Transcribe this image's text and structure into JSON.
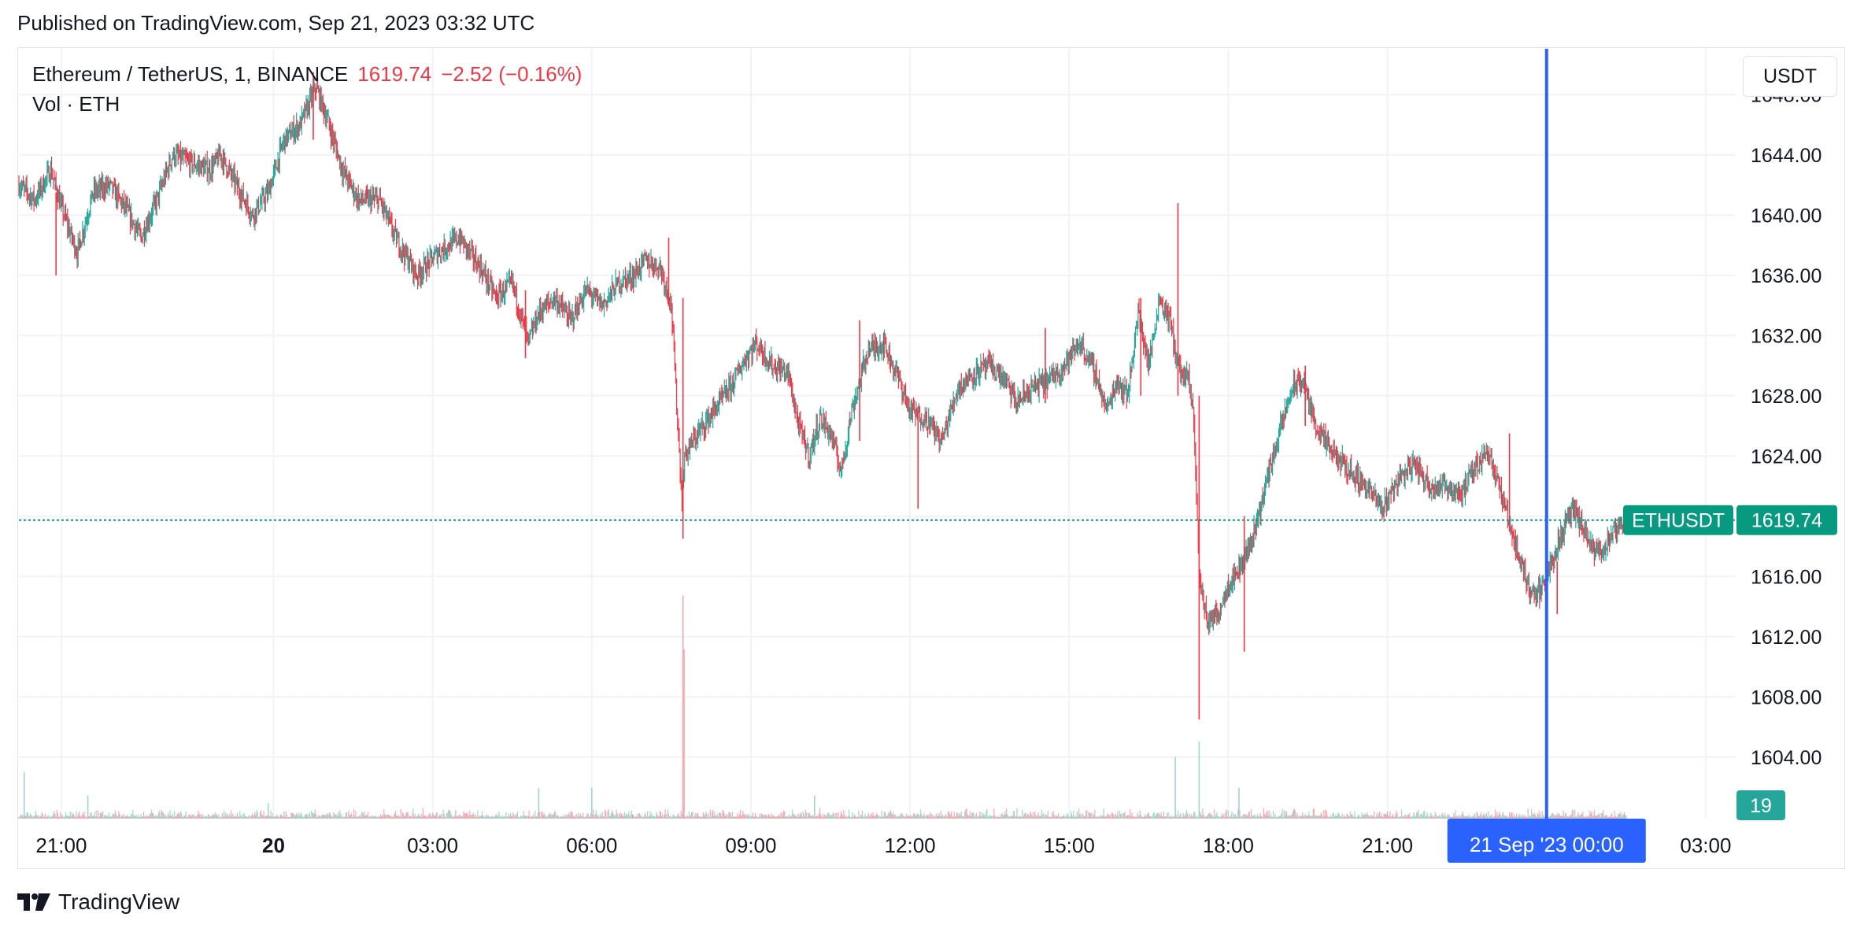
{
  "header": {
    "published": "Published on TradingView.com, Sep 21, 2023 03:32 UTC"
  },
  "legend": {
    "symbol": "Ethereum / TetherUS, 1, BINANCE",
    "last_price": "1619.74",
    "change": "−2.52 (−0.16%)",
    "volume_label": "Vol · ETH"
  },
  "scale": {
    "currency": "USDT"
  },
  "badges": {
    "symbol_tag": "ETHUSDT",
    "price_tag": "1619.74",
    "volume_tag": "19",
    "crosshair_time": "21 Sep '23   00:00"
  },
  "footer": {
    "brand": "TradingView"
  },
  "colors": {
    "up": "#26a69a",
    "down": "#f23645",
    "crosshair": "#2962ff",
    "grid": "#f0f3fa",
    "price_line": "#089981"
  },
  "chart_data": {
    "type": "candlestick",
    "symbol": "ETHUSDT",
    "interval": "1",
    "exchange": "BINANCE",
    "x_ticks": [
      {
        "label": "21:00",
        "time": 20.0
      },
      {
        "label": "20",
        "time": 24.0,
        "bold": true
      },
      {
        "label": "03:00",
        "time": 27.0
      },
      {
        "label": "06:00",
        "time": 30.0
      },
      {
        "label": "09:00",
        "time": 33.0
      },
      {
        "label": "12:00",
        "time": 36.0
      },
      {
        "label": "15:00",
        "time": 39.0
      },
      {
        "label": "18:00",
        "time": 42.0
      },
      {
        "label": "21:00",
        "time": 45.0
      },
      {
        "label": "00:00",
        "time": 48.0
      },
      {
        "label": "03:00",
        "time": 51.0
      }
    ],
    "x_range_hours": [
      19.2,
      51.55
    ],
    "y_ticks": [
      "1648.00",
      "1644.00",
      "1640.00",
      "1636.00",
      "1632.00",
      "1628.00",
      "1624.00",
      "1620.00",
      "1616.00",
      "1612.00",
      "1608.00",
      "1604.00"
    ],
    "ylim": [
      1602.0,
      1650.0
    ],
    "last_price": 1619.74,
    "crosshair_time": 48.0,
    "price_path": [
      [
        19.2,
        1642.0
      ],
      [
        19.5,
        1641.0
      ],
      [
        19.8,
        1643.0
      ],
      [
        20.0,
        1640.5
      ],
      [
        20.3,
        1637.5
      ],
      [
        20.6,
        1641.5
      ],
      [
        20.9,
        1642.0
      ],
      [
        21.2,
        1640.5
      ],
      [
        21.5,
        1638.5
      ],
      [
        21.8,
        1641.0
      ],
      [
        22.1,
        1644.0
      ],
      [
        22.4,
        1643.5
      ],
      [
        22.8,
        1643.0
      ],
      [
        23.0,
        1644.0
      ],
      [
        23.3,
        1642.0
      ],
      [
        23.6,
        1640.0
      ],
      [
        23.9,
        1641.5
      ],
      [
        24.2,
        1645.0
      ],
      [
        24.5,
        1646.0
      ],
      [
        24.8,
        1648.5
      ],
      [
        25.0,
        1646.5
      ],
      [
        25.3,
        1643.0
      ],
      [
        25.6,
        1641.0
      ],
      [
        26.0,
        1641.0
      ],
      [
        26.3,
        1638.5
      ],
      [
        26.7,
        1636.0
      ],
      [
        27.1,
        1637.5
      ],
      [
        27.5,
        1638.5
      ],
      [
        27.9,
        1636.5
      ],
      [
        28.2,
        1634.5
      ],
      [
        28.5,
        1635.5
      ],
      [
        28.8,
        1631.5
      ],
      [
        29.0,
        1633.5
      ],
      [
        29.3,
        1634.5
      ],
      [
        29.6,
        1633.0
      ],
      [
        29.9,
        1635.0
      ],
      [
        30.2,
        1634.0
      ],
      [
        30.5,
        1635.5
      ],
      [
        30.8,
        1636.0
      ],
      [
        31.0,
        1637.0
      ],
      [
        31.3,
        1636.5
      ],
      [
        31.5,
        1634.0
      ],
      [
        31.7,
        1621.0
      ],
      [
        31.75,
        1624.0
      ],
      [
        32.0,
        1625.5
      ],
      [
        32.3,
        1627.0
      ],
      [
        32.6,
        1628.5
      ],
      [
        32.9,
        1630.5
      ],
      [
        33.1,
        1631.5
      ],
      [
        33.4,
        1630.0
      ],
      [
        33.7,
        1629.5
      ],
      [
        33.9,
        1626.0
      ],
      [
        34.1,
        1624.0
      ],
      [
        34.3,
        1626.5
      ],
      [
        34.5,
        1625.5
      ],
      [
        34.7,
        1623.0
      ],
      [
        34.9,
        1627.0
      ],
      [
        35.2,
        1631.0
      ],
      [
        35.5,
        1631.5
      ],
      [
        35.8,
        1629.0
      ],
      [
        36.0,
        1627.0
      ],
      [
        36.3,
        1626.5
      ],
      [
        36.6,
        1625.0
      ],
      [
        36.9,
        1628.5
      ],
      [
        37.2,
        1629.5
      ],
      [
        37.5,
        1630.0
      ],
      [
        37.8,
        1629.0
      ],
      [
        38.0,
        1627.5
      ],
      [
        38.3,
        1628.5
      ],
      [
        38.6,
        1629.0
      ],
      [
        38.9,
        1630.0
      ],
      [
        39.2,
        1631.5
      ],
      [
        39.5,
        1629.5
      ],
      [
        39.7,
        1627.0
      ],
      [
        39.9,
        1629.0
      ],
      [
        40.1,
        1628.0
      ],
      [
        40.3,
        1633.5
      ],
      [
        40.5,
        1630.0
      ],
      [
        40.7,
        1634.5
      ],
      [
        40.9,
        1633.0
      ],
      [
        41.0,
        1631.0
      ],
      [
        41.1,
        1629.5
      ],
      [
        41.25,
        1629.0
      ],
      [
        41.35,
        1626.5
      ],
      [
        41.45,
        1616.0
      ],
      [
        41.6,
        1613.0
      ],
      [
        41.8,
        1613.5
      ],
      [
        42.0,
        1615.5
      ],
      [
        42.2,
        1616.5
      ],
      [
        42.4,
        1618.0
      ],
      [
        42.6,
        1620.5
      ],
      [
        42.8,
        1623.5
      ],
      [
        43.0,
        1626.0
      ],
      [
        43.2,
        1628.5
      ],
      [
        43.4,
        1629.0
      ],
      [
        43.6,
        1626.5
      ],
      [
        43.8,
        1625.0
      ],
      [
        44.0,
        1624.0
      ],
      [
        44.3,
        1623.0
      ],
      [
        44.6,
        1622.0
      ],
      [
        44.9,
        1620.5
      ],
      [
        45.2,
        1622.5
      ],
      [
        45.5,
        1623.5
      ],
      [
        45.8,
        1622.0
      ],
      [
        46.1,
        1622.0
      ],
      [
        46.4,
        1621.5
      ],
      [
        46.7,
        1623.5
      ],
      [
        46.9,
        1624.5
      ],
      [
        47.1,
        1622.0
      ],
      [
        47.3,
        1619.5
      ],
      [
        47.5,
        1617.0
      ],
      [
        47.7,
        1615.0
      ],
      [
        47.9,
        1615.0
      ],
      [
        48.1,
        1617.0
      ],
      [
        48.3,
        1619.0
      ],
      [
        48.5,
        1620.5
      ],
      [
        48.7,
        1619.0
      ],
      [
        48.9,
        1617.5
      ],
      [
        49.1,
        1618.0
      ],
      [
        49.3,
        1619.0
      ],
      [
        49.5,
        1619.74
      ]
    ],
    "spikes": [
      {
        "time": 19.9,
        "high": 1641.5,
        "low": 1636.0
      },
      {
        "time": 24.75,
        "high": 1649.5,
        "low": 1645.0
      },
      {
        "time": 28.75,
        "high": 1635.0,
        "low": 1630.5
      },
      {
        "time": 31.45,
        "high": 1638.5,
        "low": 1634.0
      },
      {
        "time": 31.72,
        "high": 1634.5,
        "low": 1618.5
      },
      {
        "time": 35.05,
        "high": 1633.0,
        "low": 1625.0
      },
      {
        "time": 36.15,
        "high": 1627.0,
        "low": 1620.5
      },
      {
        "time": 38.55,
        "high": 1632.5,
        "low": 1627.5
      },
      {
        "time": 40.35,
        "high": 1634.5,
        "low": 1628.0
      },
      {
        "time": 41.05,
        "high": 1640.8,
        "low": 1628.0
      },
      {
        "time": 41.45,
        "high": 1628.0,
        "low": 1606.5
      },
      {
        "time": 42.3,
        "high": 1620.0,
        "low": 1611.0
      },
      {
        "time": 43.45,
        "high": 1630.0,
        "low": 1626.0
      },
      {
        "time": 47.3,
        "high": 1625.5,
        "low": 1619.0
      },
      {
        "time": 48.2,
        "high": 1617.0,
        "low": 1613.5
      }
    ],
    "volume_spikes": [
      {
        "time": 19.3,
        "height": 0.06
      },
      {
        "time": 20.5,
        "height": 0.03
      },
      {
        "time": 23.9,
        "height": 0.02
      },
      {
        "time": 29.0,
        "height": 0.04
      },
      {
        "time": 30.0,
        "height": 0.04
      },
      {
        "time": 31.72,
        "height": 0.29
      },
      {
        "time": 31.74,
        "height": 0.22
      },
      {
        "time": 34.2,
        "height": 0.03
      },
      {
        "time": 41.0,
        "height": 0.08
      },
      {
        "time": 41.45,
        "height": 0.1
      },
      {
        "time": 42.2,
        "height": 0.04
      }
    ],
    "volume_last": 19
  }
}
